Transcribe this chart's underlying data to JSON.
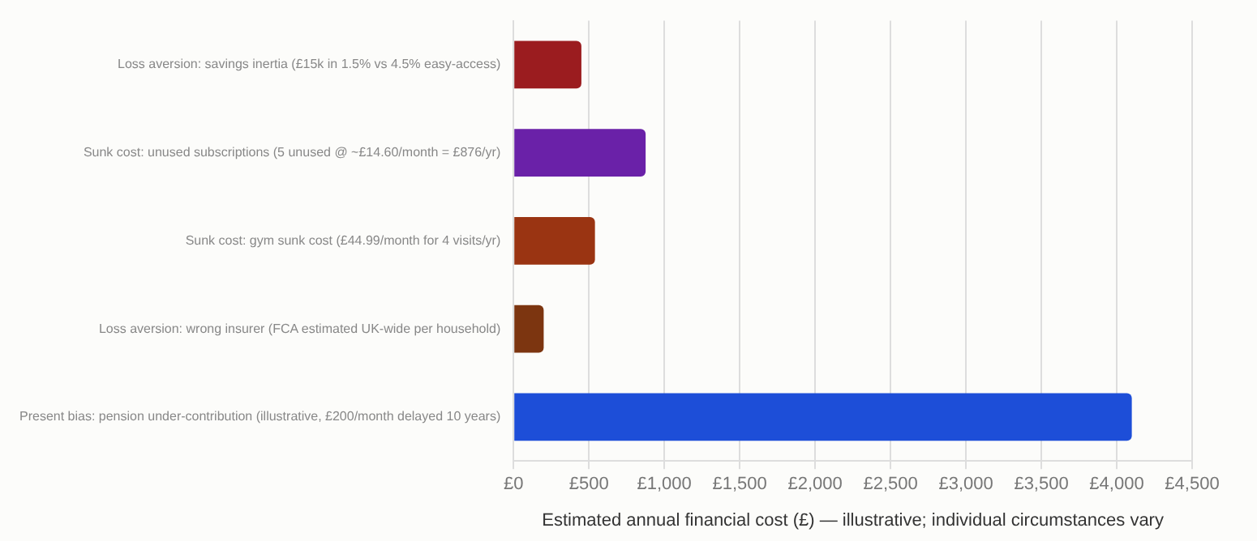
{
  "chart_data": {
    "type": "bar",
    "orientation": "horizontal",
    "xlabel": "Estimated annual financial cost (£) — illustrative; individual circumstances vary",
    "categories": [
      "Loss aversion: savings inertia (£15k in 1.5% vs 4.5% easy-access)",
      "Sunk cost: unused subscriptions (5 unused @ ~£14.60/month = £876/yr)",
      "Sunk cost: gym sunk cost (£44.99/month for 4 visits/yr)",
      "Loss aversion: wrong insurer (FCA estimated UK-wide per household)",
      "Present bias: pension under-contribution (illustrative, £200/month delayed 10 years)"
    ],
    "values": [
      450,
      876,
      540,
      200,
      4100
    ],
    "colors": [
      "#9b1c1f",
      "#6a21a8",
      "#9a3412",
      "#7c3510",
      "#1d4ed8"
    ],
    "xlim": [
      0,
      4500
    ],
    "xticks": [
      {
        "value": 0,
        "label": "£0"
      },
      {
        "value": 500,
        "label": "£500"
      },
      {
        "value": 1000,
        "label": "£1,000"
      },
      {
        "value": 1500,
        "label": "£1,500"
      },
      {
        "value": 2000,
        "label": "£2,000"
      },
      {
        "value": 2500,
        "label": "£2,500"
      },
      {
        "value": 3000,
        "label": "£3,000"
      },
      {
        "value": 3500,
        "label": "£3,500"
      },
      {
        "value": 4000,
        "label": "£4,000"
      },
      {
        "value": 4500,
        "label": "£4,500"
      }
    ],
    "grid": "x",
    "legend": false
  }
}
